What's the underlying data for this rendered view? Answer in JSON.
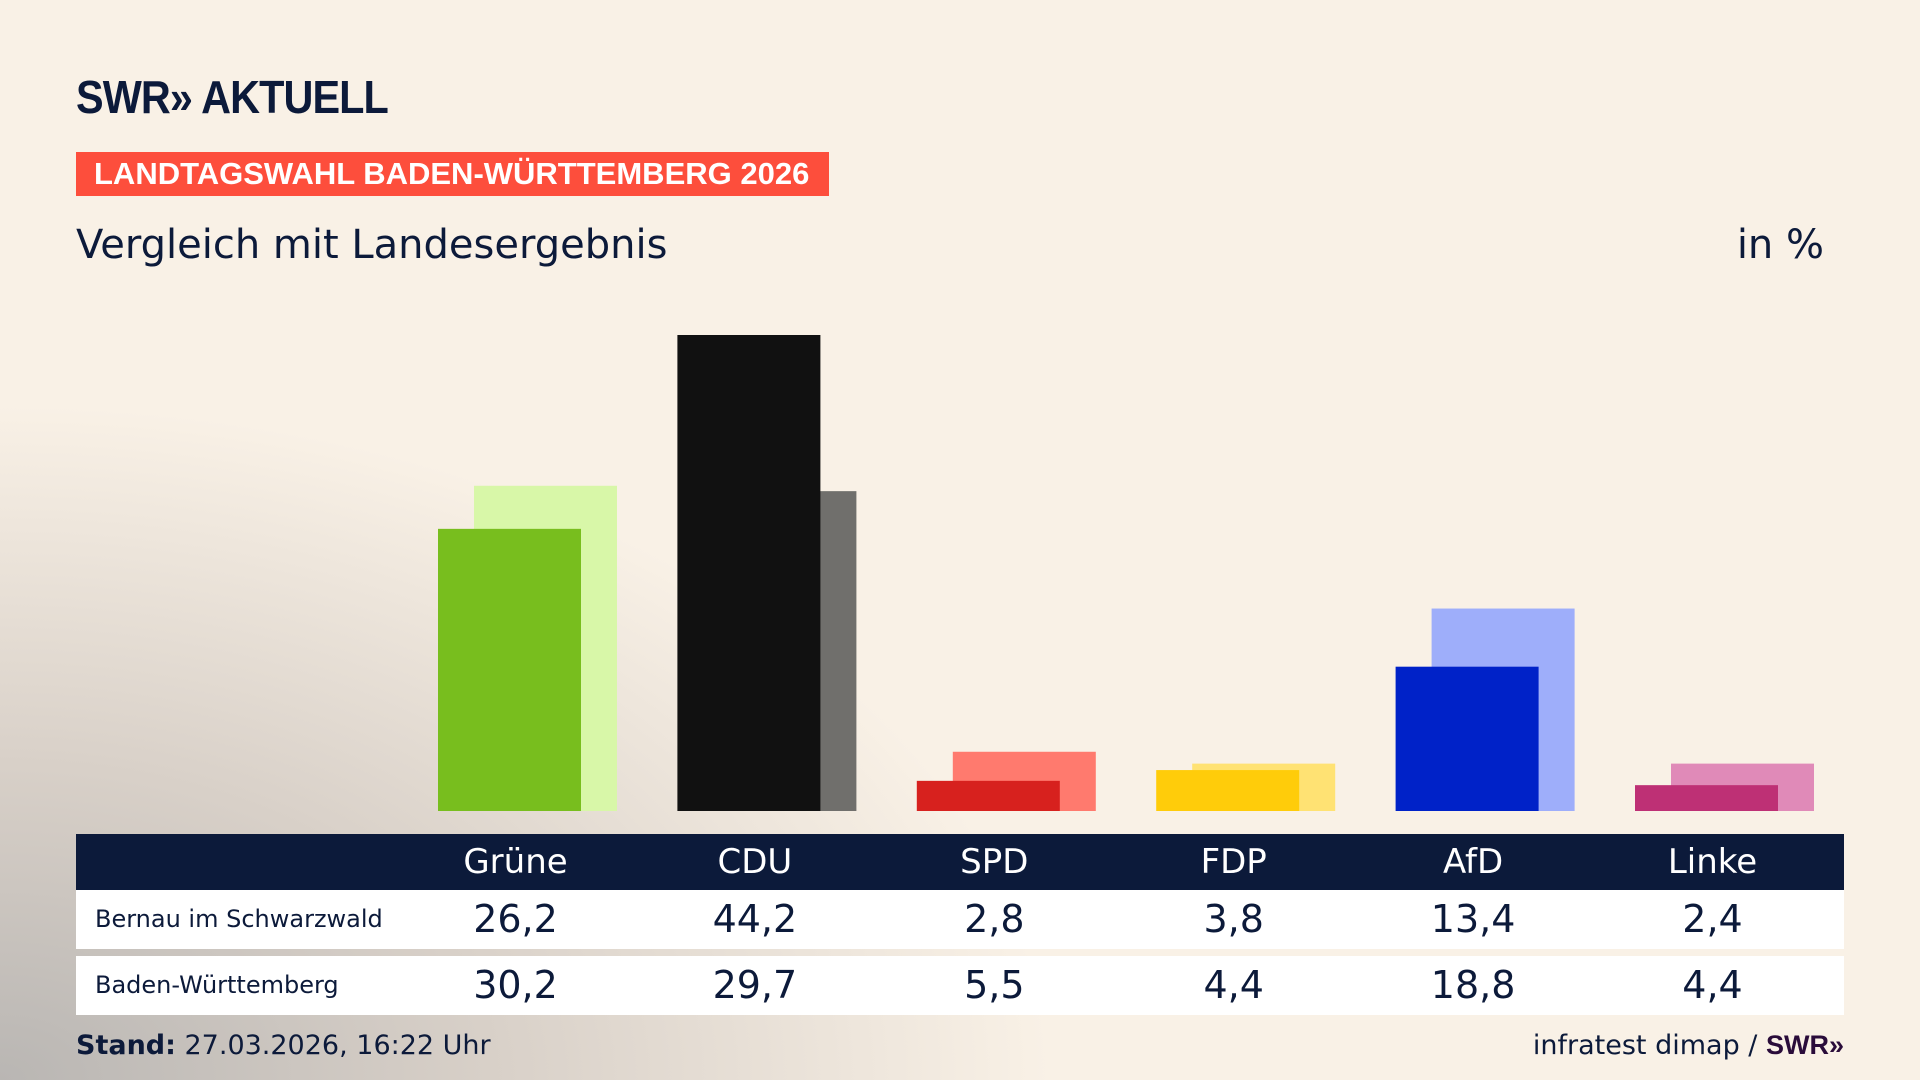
{
  "logo": "SWR» AKTUELL",
  "banner": "LANDTAGSWAHL BADEN-WÜRTTEMBERG 2026",
  "subtitle": "Vergleich mit Landesergebnis",
  "unit": "in %",
  "chart_data": {
    "type": "bar",
    "categories": [
      "Grüne",
      "CDU",
      "SPD",
      "FDP",
      "AfD",
      "Linke"
    ],
    "series": [
      {
        "name": "Bernau im Schwarzwald",
        "values": [
          26.2,
          44.2,
          2.8,
          3.8,
          13.4,
          2.4
        ]
      },
      {
        "name": "Baden-Württemberg",
        "values": [
          30.2,
          29.7,
          5.5,
          4.4,
          18.8,
          4.4
        ]
      }
    ],
    "colors": {
      "primary": [
        "#78be1e",
        "#111111",
        "#d7211e",
        "#ffcc0a",
        "#0022c8",
        "#be3075"
      ],
      "secondary": [
        "#d8f7a8",
        "#706f6c",
        "#ff7a6e",
        "#ffe273",
        "#9eaefa",
        "#e08ab8"
      ]
    },
    "ylim": [
      0,
      44.2
    ],
    "grid": false
  },
  "table": {
    "rows": [
      {
        "label": "Bernau im Schwarzwald",
        "values": [
          "26,2",
          "44,2",
          "2,8",
          "3,8",
          "13,4",
          "2,4"
        ]
      },
      {
        "label": "Baden-Württemberg",
        "values": [
          "30,2",
          "29,7",
          "5,5",
          "4,4",
          "18,8",
          "4,4"
        ]
      }
    ]
  },
  "footer": {
    "stand_label": "Stand:",
    "stand_value": " 27.03.2026, 16:22 Uhr",
    "source": "infratest dimap / ",
    "source_logo": "SWR»"
  }
}
